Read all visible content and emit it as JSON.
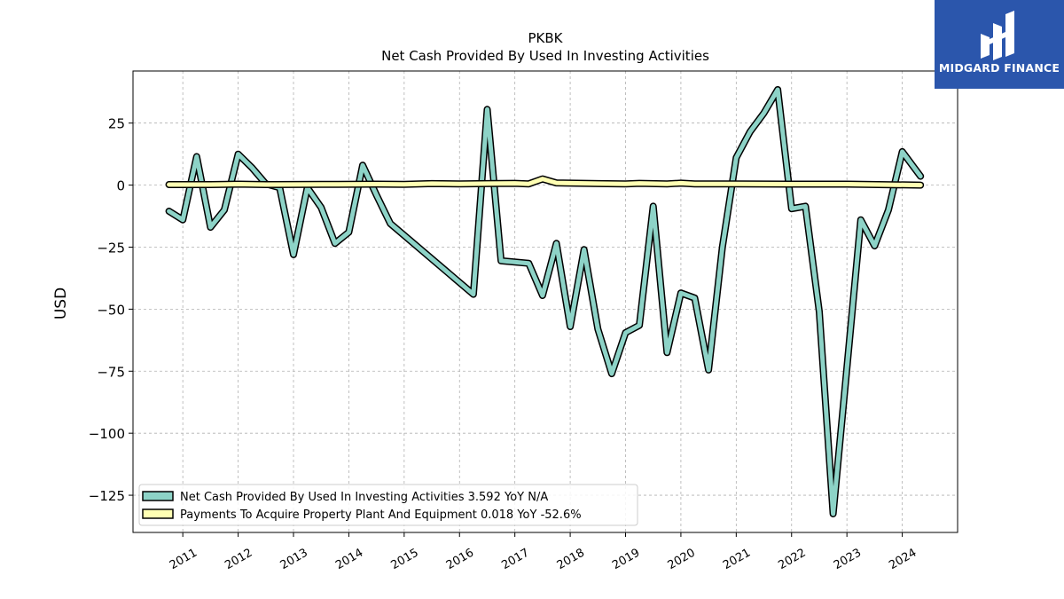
{
  "title": "PKBK",
  "subtitle": "Net Cash Provided By Used In Investing Activities",
  "brand": {
    "name": "MIDGARD FINANCE",
    "color": "#2b56ac"
  },
  "chart_data": {
    "type": "line",
    "ylabel": "USD",
    "xlabel": "",
    "xlim": [
      2010.1,
      2025.0
    ],
    "ylim": [
      -140,
      46
    ],
    "xticks": [
      2011,
      2012,
      2013,
      2014,
      2015,
      2016,
      2017,
      2018,
      2019,
      2020,
      2021,
      2022,
      2023,
      2024
    ],
    "yticks": [
      25,
      0,
      -25,
      -50,
      -75,
      -100,
      -125
    ],
    "ytick_labels": [
      "25",
      "0",
      "−25",
      "−50",
      "−75",
      "−100",
      "−125"
    ],
    "grid": true,
    "legend_position": "lower-left",
    "series": [
      {
        "name": "Net Cash Provided By Used In Investing Activities",
        "legend_label": "Net Cash Provided By Used In Investing Activities  3.592 YoY N/A",
        "color": "#8dd3c7",
        "points": [
          [
            2010.75,
            -10.5
          ],
          [
            2011.0,
            -14.0
          ],
          [
            2011.25,
            11.5
          ],
          [
            2011.5,
            -17.0
          ],
          [
            2011.75,
            -10.0
          ],
          [
            2012.0,
            12.5
          ],
          [
            2012.25,
            7.0
          ],
          [
            2012.5,
            0.5
          ],
          [
            2012.75,
            -1.0
          ],
          [
            2013.0,
            -28.0
          ],
          [
            2013.25,
            -1.0
          ],
          [
            2013.5,
            -9.0
          ],
          [
            2013.75,
            -23.5
          ],
          [
            2014.0,
            -19.0
          ],
          [
            2014.25,
            8.0
          ],
          [
            2014.5,
            -4.0
          ],
          [
            2014.75,
            -15.5
          ],
          [
            2016.25,
            -44.0
          ],
          [
            2016.5,
            30.5
          ],
          [
            2016.75,
            -30.5
          ],
          [
            2017.25,
            -31.5
          ],
          [
            2017.5,
            -44.5
          ],
          [
            2017.75,
            -23.5
          ],
          [
            2018.0,
            -57.0
          ],
          [
            2018.25,
            -26.0
          ],
          [
            2018.5,
            -58.0
          ],
          [
            2018.75,
            -76.0
          ],
          [
            2019.0,
            -59.5
          ],
          [
            2019.25,
            -56.5
          ],
          [
            2019.5,
            -8.5
          ],
          [
            2019.75,
            -67.5
          ],
          [
            2020.0,
            -43.5
          ],
          [
            2020.25,
            -45.5
          ],
          [
            2020.5,
            -74.5
          ],
          [
            2020.75,
            -25.0
          ],
          [
            2021.0,
            11.0
          ],
          [
            2021.25,
            21.5
          ],
          [
            2021.5,
            29.0
          ],
          [
            2021.75,
            38.5
          ],
          [
            2022.0,
            -9.5
          ],
          [
            2022.25,
            -8.5
          ],
          [
            2022.5,
            -51.0
          ],
          [
            2022.75,
            -132.5
          ],
          [
            2023.0,
            -73.5
          ],
          [
            2023.25,
            -14.0
          ],
          [
            2023.5,
            -24.5
          ],
          [
            2023.75,
            -10.0
          ],
          [
            2024.0,
            13.5
          ],
          [
            2024.33,
            3.592
          ]
        ]
      },
      {
        "name": "Payments To Acquire Property Plant And Equipment",
        "legend_label": "Payments To Acquire Property Plant And Equipment  0.018 YoY -52.6%",
        "color": "#ffffb3",
        "points": [
          [
            2010.75,
            0.2
          ],
          [
            2011.5,
            0.2
          ],
          [
            2012.0,
            0.4
          ],
          [
            2012.5,
            0.2
          ],
          [
            2013.5,
            0.3
          ],
          [
            2014.5,
            0.4
          ],
          [
            2015.0,
            0.3
          ],
          [
            2015.5,
            0.6
          ],
          [
            2016.0,
            0.5
          ],
          [
            2016.5,
            0.6
          ],
          [
            2017.0,
            0.7
          ],
          [
            2017.25,
            0.5
          ],
          [
            2017.5,
            2.5
          ],
          [
            2017.75,
            0.9
          ],
          [
            2018.5,
            0.6
          ],
          [
            2019.0,
            0.5
          ],
          [
            2019.25,
            0.7
          ],
          [
            2019.75,
            0.5
          ],
          [
            2020.0,
            0.8
          ],
          [
            2020.25,
            0.5
          ],
          [
            2021.0,
            0.5
          ],
          [
            2022.0,
            0.4
          ],
          [
            2023.0,
            0.4
          ],
          [
            2024.33,
            0.018
          ]
        ]
      }
    ]
  }
}
